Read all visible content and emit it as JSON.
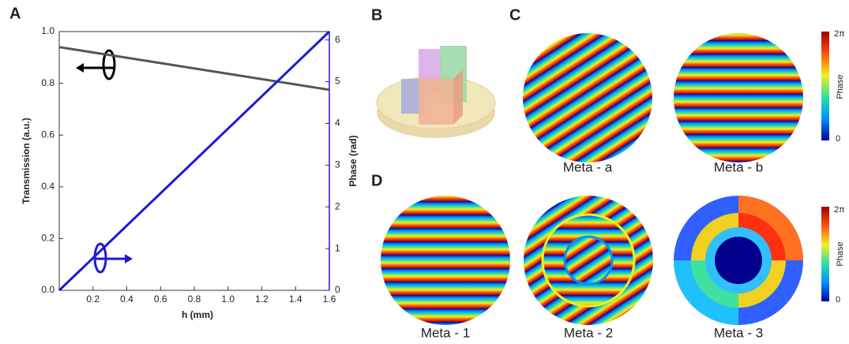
{
  "chart_data": {
    "type": "line",
    "x": [
      0,
      1.6
    ],
    "series": [
      {
        "color": "#555555",
        "values": [
          0.94,
          0.775
        ]
      },
      {
        "color": "#1a1adb",
        "values": [
          0,
          6.2
        ],
        "axis": "y2"
      }
    ],
    "xlim": [
      0,
      1.6
    ],
    "xticks": [
      0.2,
      0.4,
      0.6,
      0.8,
      {
        "value": 1,
        "label": "1.0"
      },
      1.2,
      1.4,
      1.6
    ],
    "ylim": [
      0,
      1
    ],
    "yticks": [
      {
        "value": 0,
        "label": "0.0"
      },
      0.2,
      0.4,
      0.6,
      0.8,
      {
        "value": 1,
        "label": "1.0"
      }
    ],
    "y2lim": [
      0,
      6.2
    ],
    "y2ticks": [
      0,
      1,
      2,
      3,
      4,
      5,
      6
    ],
    "xlabel": "h (mm)",
    "ylabel": "Transmission (a.u.)",
    "y2label": "Phase (rad)",
    "y2color": "#1a1adb",
    "grid": false
  },
  "figure": {
    "panel_labels": [
      "A",
      "B",
      "C",
      "D"
    ],
    "c_captions": [
      "Meta - a",
      "Meta - b"
    ],
    "d_captions": [
      "Meta - 1",
      "Meta - 2",
      "Meta - 3"
    ],
    "colorbar": {
      "top": "2π",
      "bottom": "0",
      "label": "Phase"
    }
  }
}
